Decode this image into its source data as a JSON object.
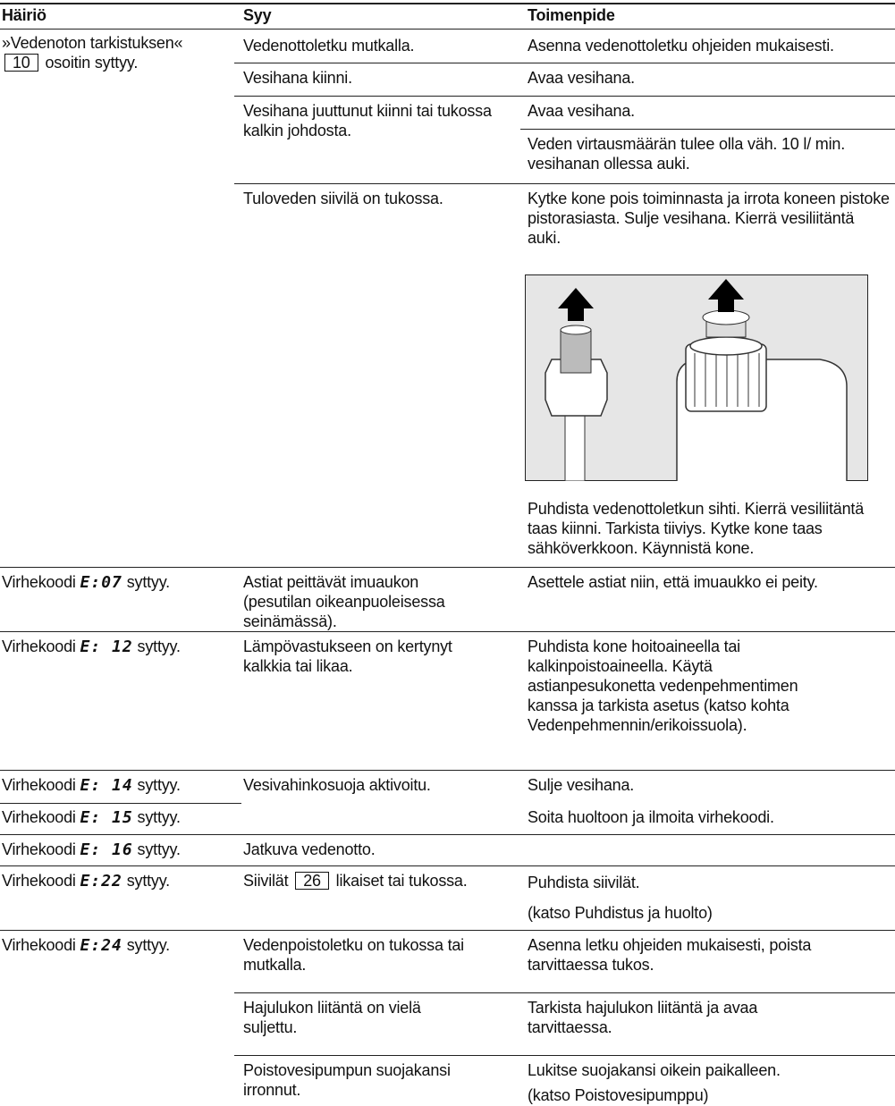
{
  "header": {
    "problem": "Häiriö",
    "cause": "Syy",
    "action": "Toimenpide"
  },
  "water_check": {
    "problem": {
      "lead": "»Vedenoton tarkistuksen«",
      "ref": "10",
      "tail": "osoitin syttyy."
    },
    "causes": [
      "Vedenottoletku mutkalla.",
      "Vesihana kiinni.",
      "Vesihana juuttunut kiinni tai tukossa kalkin johdosta.",
      "Tuloveden siivilä on tukossa."
    ],
    "actions": [
      "Asenna vedenottoletku ohjeiden mukaisesti.",
      "Avaa vesihana.",
      "Avaa vesihana.",
      "Veden virtausmäärän tulee olla väh. 10 l/ min. vesihanan ollessa auki.",
      "Kytke kone pois toiminnasta ja irrota koneen pistoke pistorasiasta. Sulje vesihana. Kierrä vesiliitäntä auki.",
      "Puhdista vedenottoletkun sihti. Kierrä vesiliitäntä taas kiinni. Tarkista tiiviys. Kytke kone taas sähköverkkoon. Käynnistä kone."
    ]
  },
  "codes": [
    {
      "prefix": "Virhekoodi",
      "code": "E:07",
      "suffix": "syttyy."
    },
    {
      "prefix": "Virhekoodi",
      "code": "E: 12",
      "suffix": "syttyy."
    },
    {
      "prefix": "Virhekoodi",
      "code": "E: 14",
      "suffix": "syttyy."
    },
    {
      "prefix": "Virhekoodi",
      "code": "E: 15",
      "suffix": "syttyy."
    },
    {
      "prefix": "Virhekoodi",
      "code": "E: 16",
      "suffix": "syttyy."
    },
    {
      "prefix": "Virhekoodi",
      "code": "E:22",
      "suffix": "syttyy."
    },
    {
      "prefix": "Virhekoodi",
      "code": "E:24",
      "suffix": "syttyy."
    }
  ],
  "code_causes": {
    "e07": "Astiat peittävät imuaukon (pesutilan oikeanpuoleisessa seinämässä).",
    "e12": "Lämpövastukseen on kertynyt kalkkia tai likaa.",
    "e14": "Vesivahinkosuoja aktivoitu.",
    "e16": "Jatkuva vedenotto.",
    "e22": {
      "lead": "Siivilät",
      "ref": "26",
      "tail": "likaiset tai tukossa."
    },
    "e24": [
      "Vedenpoistoletku on tukossa tai mutkalla.",
      "Hajulukon liitäntä on vielä suljettu.",
      "Poistovesipumpun suojakansi irronnut."
    ]
  },
  "code_actions": {
    "e07": "Asettele astiat niin, että imuaukko ei peity.",
    "e12": "Puhdista kone hoitoaineella tai kalkinpoistoaineella. Käytä astianpesukonetta vedenpehmentimen kanssa ja tarkista asetus (katso kohta Vedenpehmennin/erikoissuola).",
    "e14": "Sulje vesihana.",
    "e15": "Soita huoltoon ja ilmoita virhekoodi.",
    "e22": [
      "Puhdista siivilät.",
      "(katso Puhdistus ja huolto)"
    ],
    "e24": [
      "Asenna letku ohjeiden mukaisesti, poista tarvittaessa tukos.",
      "Tarkista hajulukon liitäntä ja avaa tarvittaessa.",
      "Lukitse suojakansi oikein paikalleen.",
      "(katso Poistovesipumppu)"
    ]
  }
}
